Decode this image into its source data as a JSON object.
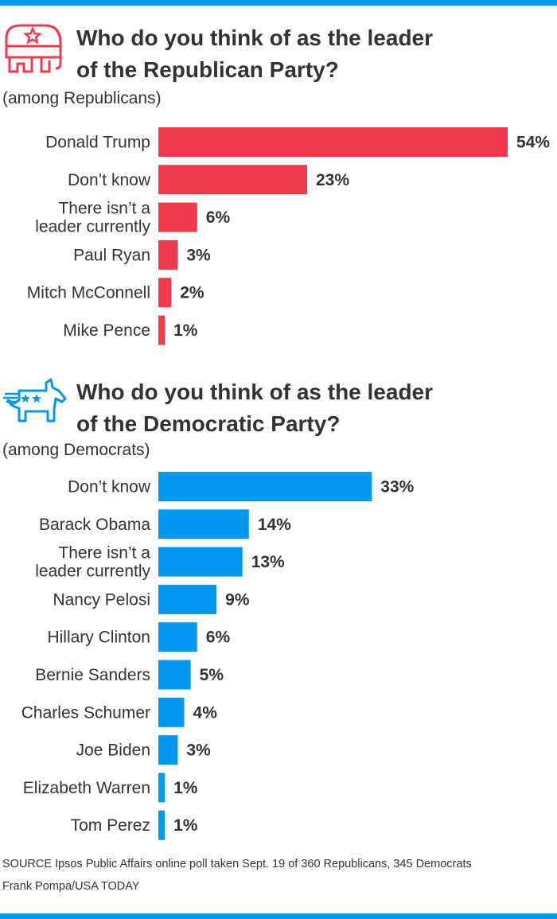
{
  "colors": {
    "republican": "#f03a4b",
    "democrat": "#0098f0",
    "rule": "#0098f0",
    "text": "#333333"
  },
  "republican": {
    "icon": "elephant-icon",
    "title_lines": [
      "Who do you think of as the leader",
      "of the Republican Party?"
    ],
    "subtitle": "(among Republicans)"
  },
  "democrat": {
    "icon": "donkey-icon",
    "title_lines": [
      "Who do you think of as the leader",
      "of the Democratic Party?"
    ],
    "subtitle": "(among Democrats)"
  },
  "chart_data": [
    {
      "type": "bar",
      "orientation": "horizontal",
      "title": "Who do you think of as the leader of the Republican Party?",
      "subtitle": "(among Republicans)",
      "categories": [
        "Donald Trump",
        "Don’t know",
        "There isn’t a leader currently",
        "Paul Ryan",
        "Mitch McConnell",
        "Mike Pence"
      ],
      "category_lines": [
        [
          "Donald Trump"
        ],
        [
          "Don’t know"
        ],
        [
          "There isn’t a",
          "leader currently"
        ],
        [
          "Paul Ryan"
        ],
        [
          "Mitch McConnell"
        ],
        [
          "Mike Pence"
        ]
      ],
      "values": [
        54,
        23,
        6,
        3,
        2,
        1
      ],
      "value_labels": [
        "54%",
        "23%",
        "6%",
        "3%",
        "2%",
        "1%"
      ],
      "unit": "%",
      "color": "#f03a4b",
      "grid": false,
      "legend": "none"
    },
    {
      "type": "bar",
      "orientation": "horizontal",
      "title": "Who do you think of as the leader of the Democratic Party?",
      "subtitle": "(among Democrats)",
      "categories": [
        "Don’t know",
        "Barack Obama",
        "There isn’t a leader currently",
        "Nancy Pelosi",
        "Hillary Clinton",
        "Bernie Sanders",
        "Charles Schumer",
        "Joe Biden",
        "Elizabeth Warren",
        "Tom Perez"
      ],
      "category_lines": [
        [
          "Don’t know"
        ],
        [
          "Barack Obama"
        ],
        [
          "There isn’t a",
          "leader currently"
        ],
        [
          "Nancy Pelosi"
        ],
        [
          "Hillary Clinton"
        ],
        [
          "Bernie Sanders"
        ],
        [
          "Charles Schumer"
        ],
        [
          "Joe Biden"
        ],
        [
          "Elizabeth Warren"
        ],
        [
          "Tom Perez"
        ]
      ],
      "values": [
        33,
        14,
        13,
        9,
        6,
        5,
        4,
        3,
        1,
        1
      ],
      "value_labels": [
        "33%",
        "14%",
        "13%",
        "9%",
        "6%",
        "5%",
        "4%",
        "3%",
        "1%",
        "1%"
      ],
      "unit": "%",
      "color": "#0098f0",
      "grid": false,
      "legend": "none"
    }
  ],
  "footer": {
    "source": "SOURCE Ipsos Public Affairs online poll taken Sept. 19 of 360 Republicans, 345 Democrats",
    "credit": "Frank Pompa/USA TODAY"
  }
}
